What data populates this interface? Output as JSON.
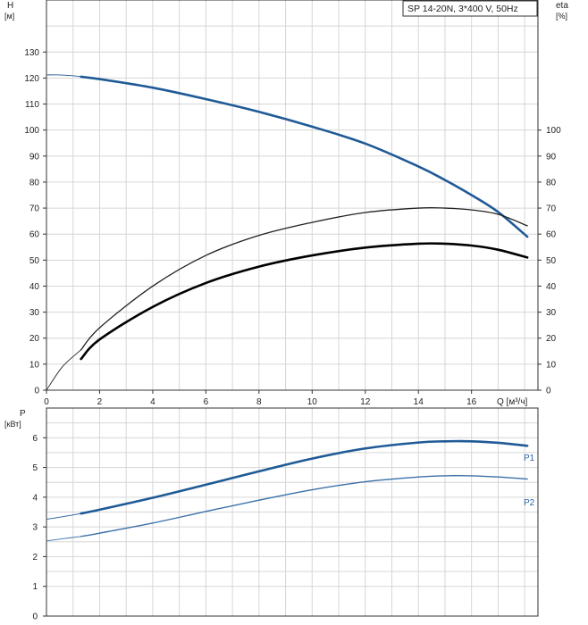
{
  "chart_data": [
    {
      "type": "line",
      "title": "SP 14-20N, 3*400 V, 50Hz",
      "xlabel": "Q [м³/ч]",
      "ylabel": "H",
      "ylabel_unit": "[м]",
      "y2label": "eta",
      "y2label_unit": "[%]",
      "xlim": [
        0,
        18.5
      ],
      "ylim": [
        0,
        150
      ],
      "y2lim": [
        0,
        150
      ],
      "grid": true,
      "xticks": [
        0,
        2,
        4,
        6,
        8,
        10,
        12,
        14,
        16
      ],
      "yticks": [
        0,
        10,
        20,
        30,
        40,
        50,
        60,
        70,
        80,
        90,
        100,
        110,
        120,
        130
      ],
      "y2ticks": [
        0,
        10,
        20,
        30,
        40,
        50,
        60,
        70,
        80,
        90,
        100
      ],
      "series": [
        {
          "role": "head",
          "axis": "left",
          "color": "#1f5a96",
          "x": [
            1.3,
            2,
            4,
            6,
            8,
            10,
            12,
            14,
            15,
            16,
            17,
            18.1
          ],
          "y": [
            120.5,
            119.6,
            116.3,
            111.9,
            107,
            101.3,
            94.8,
            86,
            80.8,
            75,
            68.5,
            59
          ],
          "extension": {
            "x": [
              0,
              0.5,
              1.0,
              1.3
            ],
            "y": [
              121.2,
              121.2,
              120.9,
              120.5
            ]
          }
        },
        {
          "role": "efficiency_thin",
          "axis": "right",
          "color": "#222222",
          "x": [
            1.3,
            2,
            4,
            6,
            8,
            10,
            12,
            14,
            15,
            16,
            17,
            18.1
          ],
          "y": [
            15.5,
            24,
            40,
            51.8,
            59.5,
            64.5,
            68.3,
            70,
            70,
            69.3,
            67.6,
            63.2
          ],
          "extension": {
            "x": [
              0,
              0.6,
              1.3
            ],
            "y": [
              0,
              9,
              15.5
            ]
          }
        },
        {
          "role": "efficiency_thick",
          "axis": "right",
          "color": "#000000",
          "x": [
            1.3,
            2,
            4,
            6,
            8,
            10,
            12,
            14,
            15,
            16,
            17,
            18.1
          ],
          "y": [
            12,
            19.5,
            32,
            41.2,
            47.5,
            51.8,
            54.8,
            56.3,
            56.3,
            55.6,
            54,
            51
          ]
        }
      ]
    },
    {
      "type": "line",
      "ylabel": "P",
      "ylabel_unit": "[кВт]",
      "xlim": [
        0,
        18.5
      ],
      "ylim": [
        0,
        7
      ],
      "yticks": [
        0,
        1,
        2,
        3,
        4,
        5,
        6
      ],
      "grid": true,
      "series": [
        {
          "name": "P1",
          "color": "#1f5a96",
          "x": [
            1.3,
            2,
            4,
            6,
            8,
            10,
            12,
            14,
            15,
            16,
            17,
            18.1
          ],
          "y": [
            3.45,
            3.58,
            3.98,
            4.42,
            4.87,
            5.3,
            5.64,
            5.84,
            5.88,
            5.88,
            5.83,
            5.73
          ],
          "extension": {
            "x": [
              0,
              0.6,
              1.3
            ],
            "y": [
              3.26,
              3.34,
              3.45
            ]
          }
        },
        {
          "name": "P2",
          "color": "#3a70a8",
          "x": [
            1.3,
            2,
            4,
            6,
            8,
            10,
            12,
            14,
            15,
            16,
            17,
            18.1
          ],
          "y": [
            2.68,
            2.79,
            3.13,
            3.52,
            3.9,
            4.25,
            4.52,
            4.68,
            4.72,
            4.72,
            4.68,
            4.61
          ],
          "extension": {
            "x": [
              0,
              0.6,
              1.3
            ],
            "y": [
              2.53,
              2.6,
              2.68
            ]
          }
        }
      ]
    }
  ]
}
